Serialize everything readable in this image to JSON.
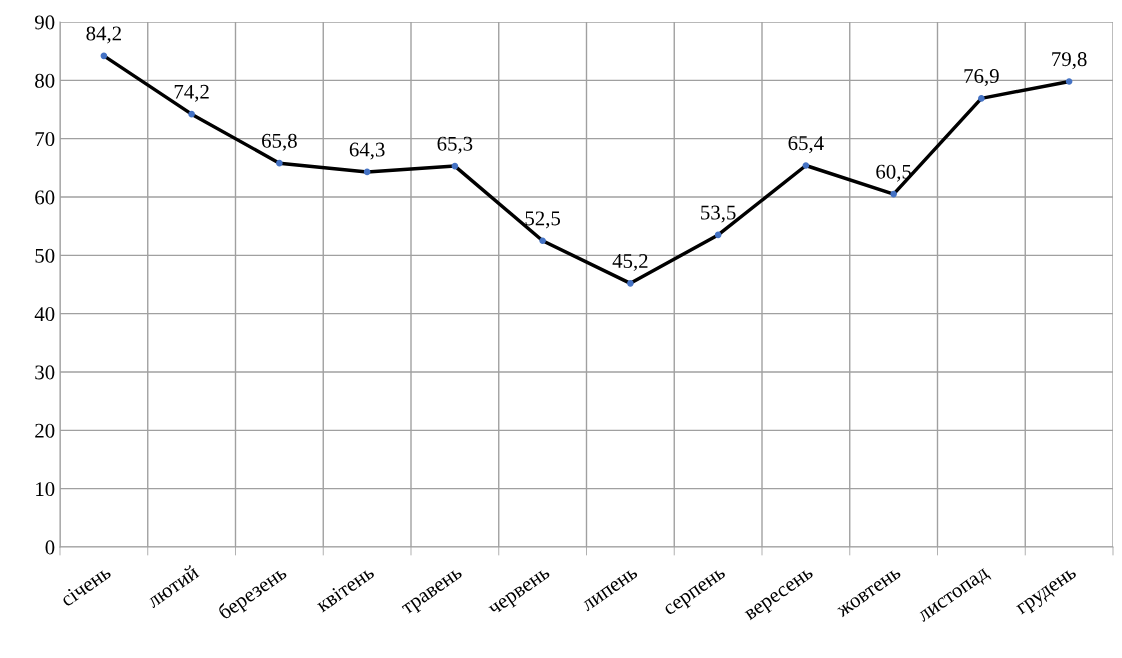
{
  "chart_data": {
    "type": "line",
    "categories": [
      "січень",
      "лютий",
      "березень",
      "квітень",
      "травень",
      "червень",
      "липень",
      "серпень",
      "вересень",
      "жовтень",
      "листопад",
      "грудень"
    ],
    "series": [
      {
        "color": "#000000",
        "colors": [
          "#4472c4",
          "#4472c4",
          "#4472c4",
          "#4472c4",
          "#4472c4",
          "#4472c4",
          "#4472c4",
          "#4472c4",
          "#4472c4",
          "#4472c4",
          "#4472c4",
          "#4472c4"
        ],
        "values": [
          84.2,
          74.2,
          65.8,
          64.3,
          65.3,
          52.5,
          45.2,
          53.5,
          65.4,
          60.5,
          76.9,
          79.8
        ],
        "value_labels": [
          "84,2",
          "74,2",
          "65,8",
          "64,3",
          "65,3",
          "52,5",
          "45,2",
          "53,5",
          "65,4",
          "60,5",
          "76,9",
          "79,8"
        ]
      }
    ],
    "ylim": [
      0,
      90
    ],
    "yticks": [
      0,
      10,
      20,
      30,
      40,
      50,
      60,
      70,
      80,
      90
    ],
    "grid": true,
    "marker": "circle",
    "line_style": "solid"
  }
}
